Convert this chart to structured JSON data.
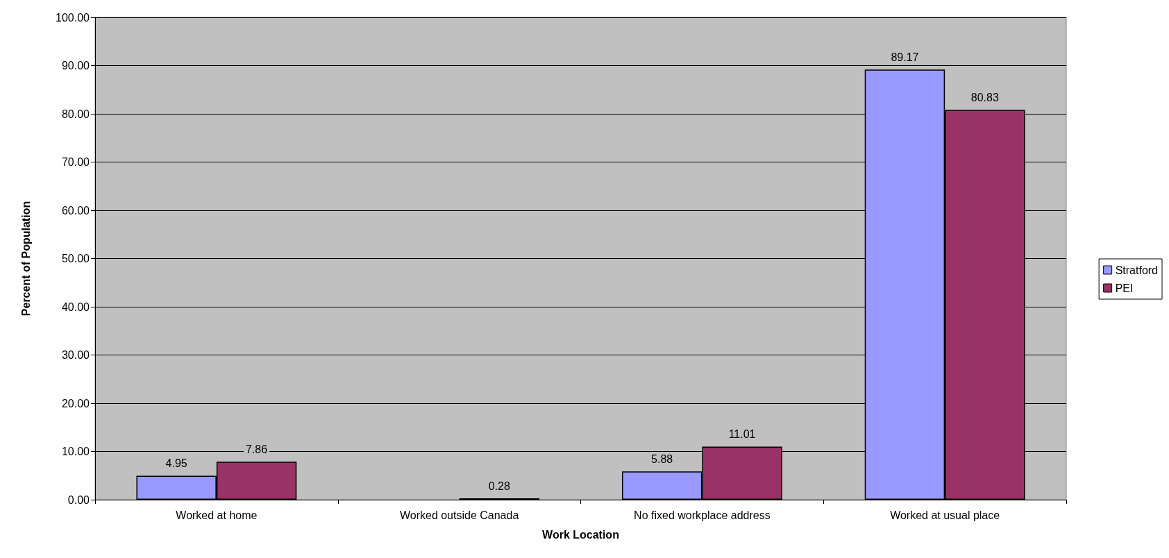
{
  "chart_data": {
    "type": "bar",
    "xlabel": "Work Location",
    "ylabel": "Percent of Population",
    "categories": [
      "Worked at home",
      "Worked outside Canada",
      "No fixed workplace address",
      "Worked at usual place"
    ],
    "series": [
      {
        "name": "Stratford",
        "color": "#9999ff",
        "values": [
          4.95,
          null,
          5.88,
          89.17
        ]
      },
      {
        "name": "PEI",
        "color": "#993366",
        "values": [
          7.86,
          0.28,
          11.01,
          80.83
        ]
      }
    ],
    "ylim": [
      0,
      100
    ],
    "yticks": [
      {
        "value": 0,
        "label": "0.00"
      },
      {
        "value": 10,
        "label": "10.00"
      },
      {
        "value": 20,
        "label": "20.00"
      },
      {
        "value": 30,
        "label": "30.00"
      },
      {
        "value": 40,
        "label": "40.00"
      },
      {
        "value": 50,
        "label": "50.00"
      },
      {
        "value": 60,
        "label": "60.00"
      },
      {
        "value": 70,
        "label": "70.00"
      },
      {
        "value": 80,
        "label": "80.00"
      },
      {
        "value": 90,
        "label": "90.00"
      },
      {
        "value": 100,
        "label": "100.00"
      }
    ],
    "grid": "y",
    "legend": "right",
    "data_labels": true
  }
}
